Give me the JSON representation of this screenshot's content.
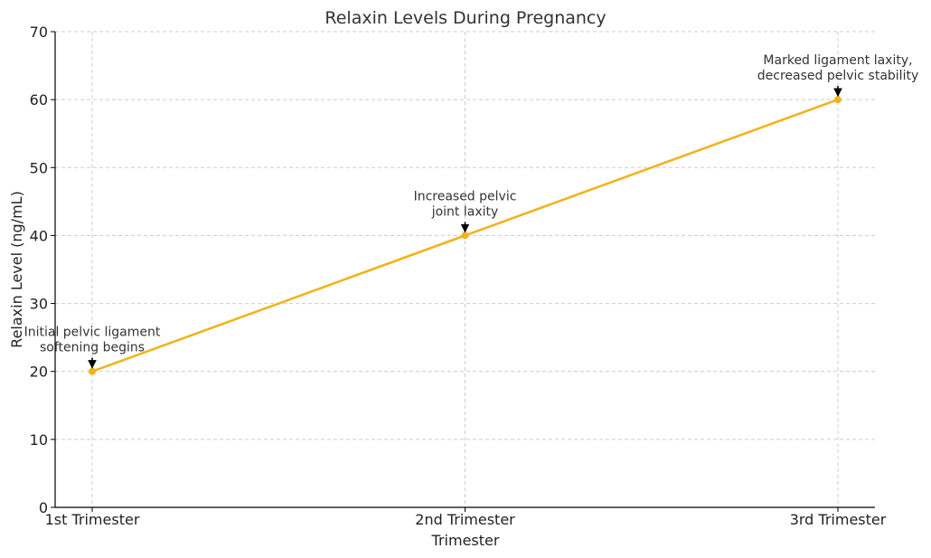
{
  "chart_data": {
    "type": "line",
    "title": "Relaxin Levels During Pregnancy",
    "xlabel": "Trimester",
    "ylabel": "Relaxin Level (ng/mL)",
    "categories": [
      "1st Trimester",
      "2nd Trimester",
      "3rd Trimester"
    ],
    "series": [
      {
        "values": [
          20,
          40,
          60
        ],
        "color": "#f0b41e"
      }
    ],
    "ylim": [
      0,
      70
    ],
    "yticks": [
      0,
      10,
      20,
      30,
      40,
      50,
      60,
      70
    ],
    "grid": true,
    "annotations": [
      {
        "category": "1st Trimester",
        "value": 20,
        "lines": [
          "Initial pelvic ligament",
          "softening begins"
        ]
      },
      {
        "category": "2nd Trimester",
        "value": 40,
        "lines": [
          "Increased pelvic",
          "joint laxity"
        ]
      },
      {
        "category": "3rd Trimester",
        "value": 60,
        "lines": [
          "Marked ligament laxity,",
          "decreased pelvic stability"
        ]
      }
    ]
  }
}
